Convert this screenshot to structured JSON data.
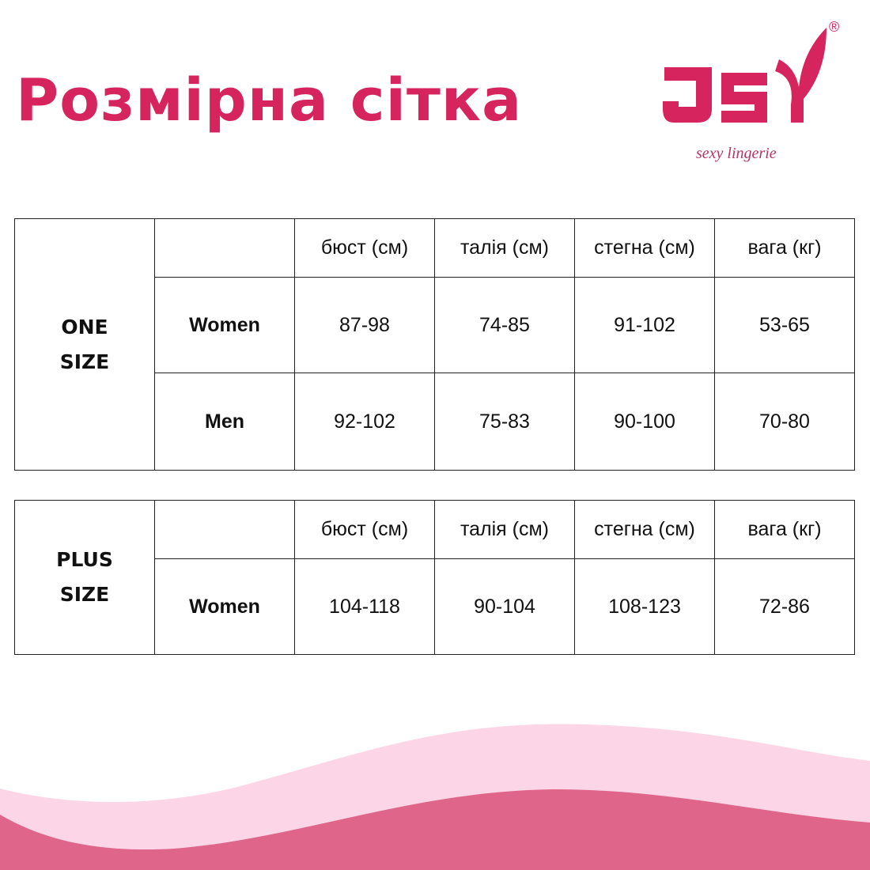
{
  "title": "Розмірна сітка",
  "logo": {
    "letters": "JSY",
    "tagline": "sexy lingerie",
    "registered": "®",
    "color": "#d6245f"
  },
  "colors": {
    "accent": "#d6245f",
    "wave_light": "#fcd5e6",
    "wave_dark": "#e0658b"
  },
  "tables": [
    {
      "size_label": [
        "ONE",
        "SIZE"
      ],
      "headers": [
        "бюст (см)",
        "талія (см)",
        "стегна (см)",
        "вага (кг)"
      ],
      "rows": [
        {
          "label": "Women",
          "values": [
            "87-98",
            "74-85",
            "91-102",
            "53-65"
          ]
        },
        {
          "label": "Men",
          "values": [
            "92-102",
            "75-83",
            "90-100",
            "70-80"
          ]
        }
      ]
    },
    {
      "size_label": [
        "PLUS",
        "SIZE"
      ],
      "headers": [
        "бюст (см)",
        "талія (см)",
        "стегна (см)",
        "вага (кг)"
      ],
      "rows": [
        {
          "label": "Women",
          "values": [
            "104-118",
            "90-104",
            "108-123",
            "72-86"
          ]
        }
      ]
    }
  ]
}
